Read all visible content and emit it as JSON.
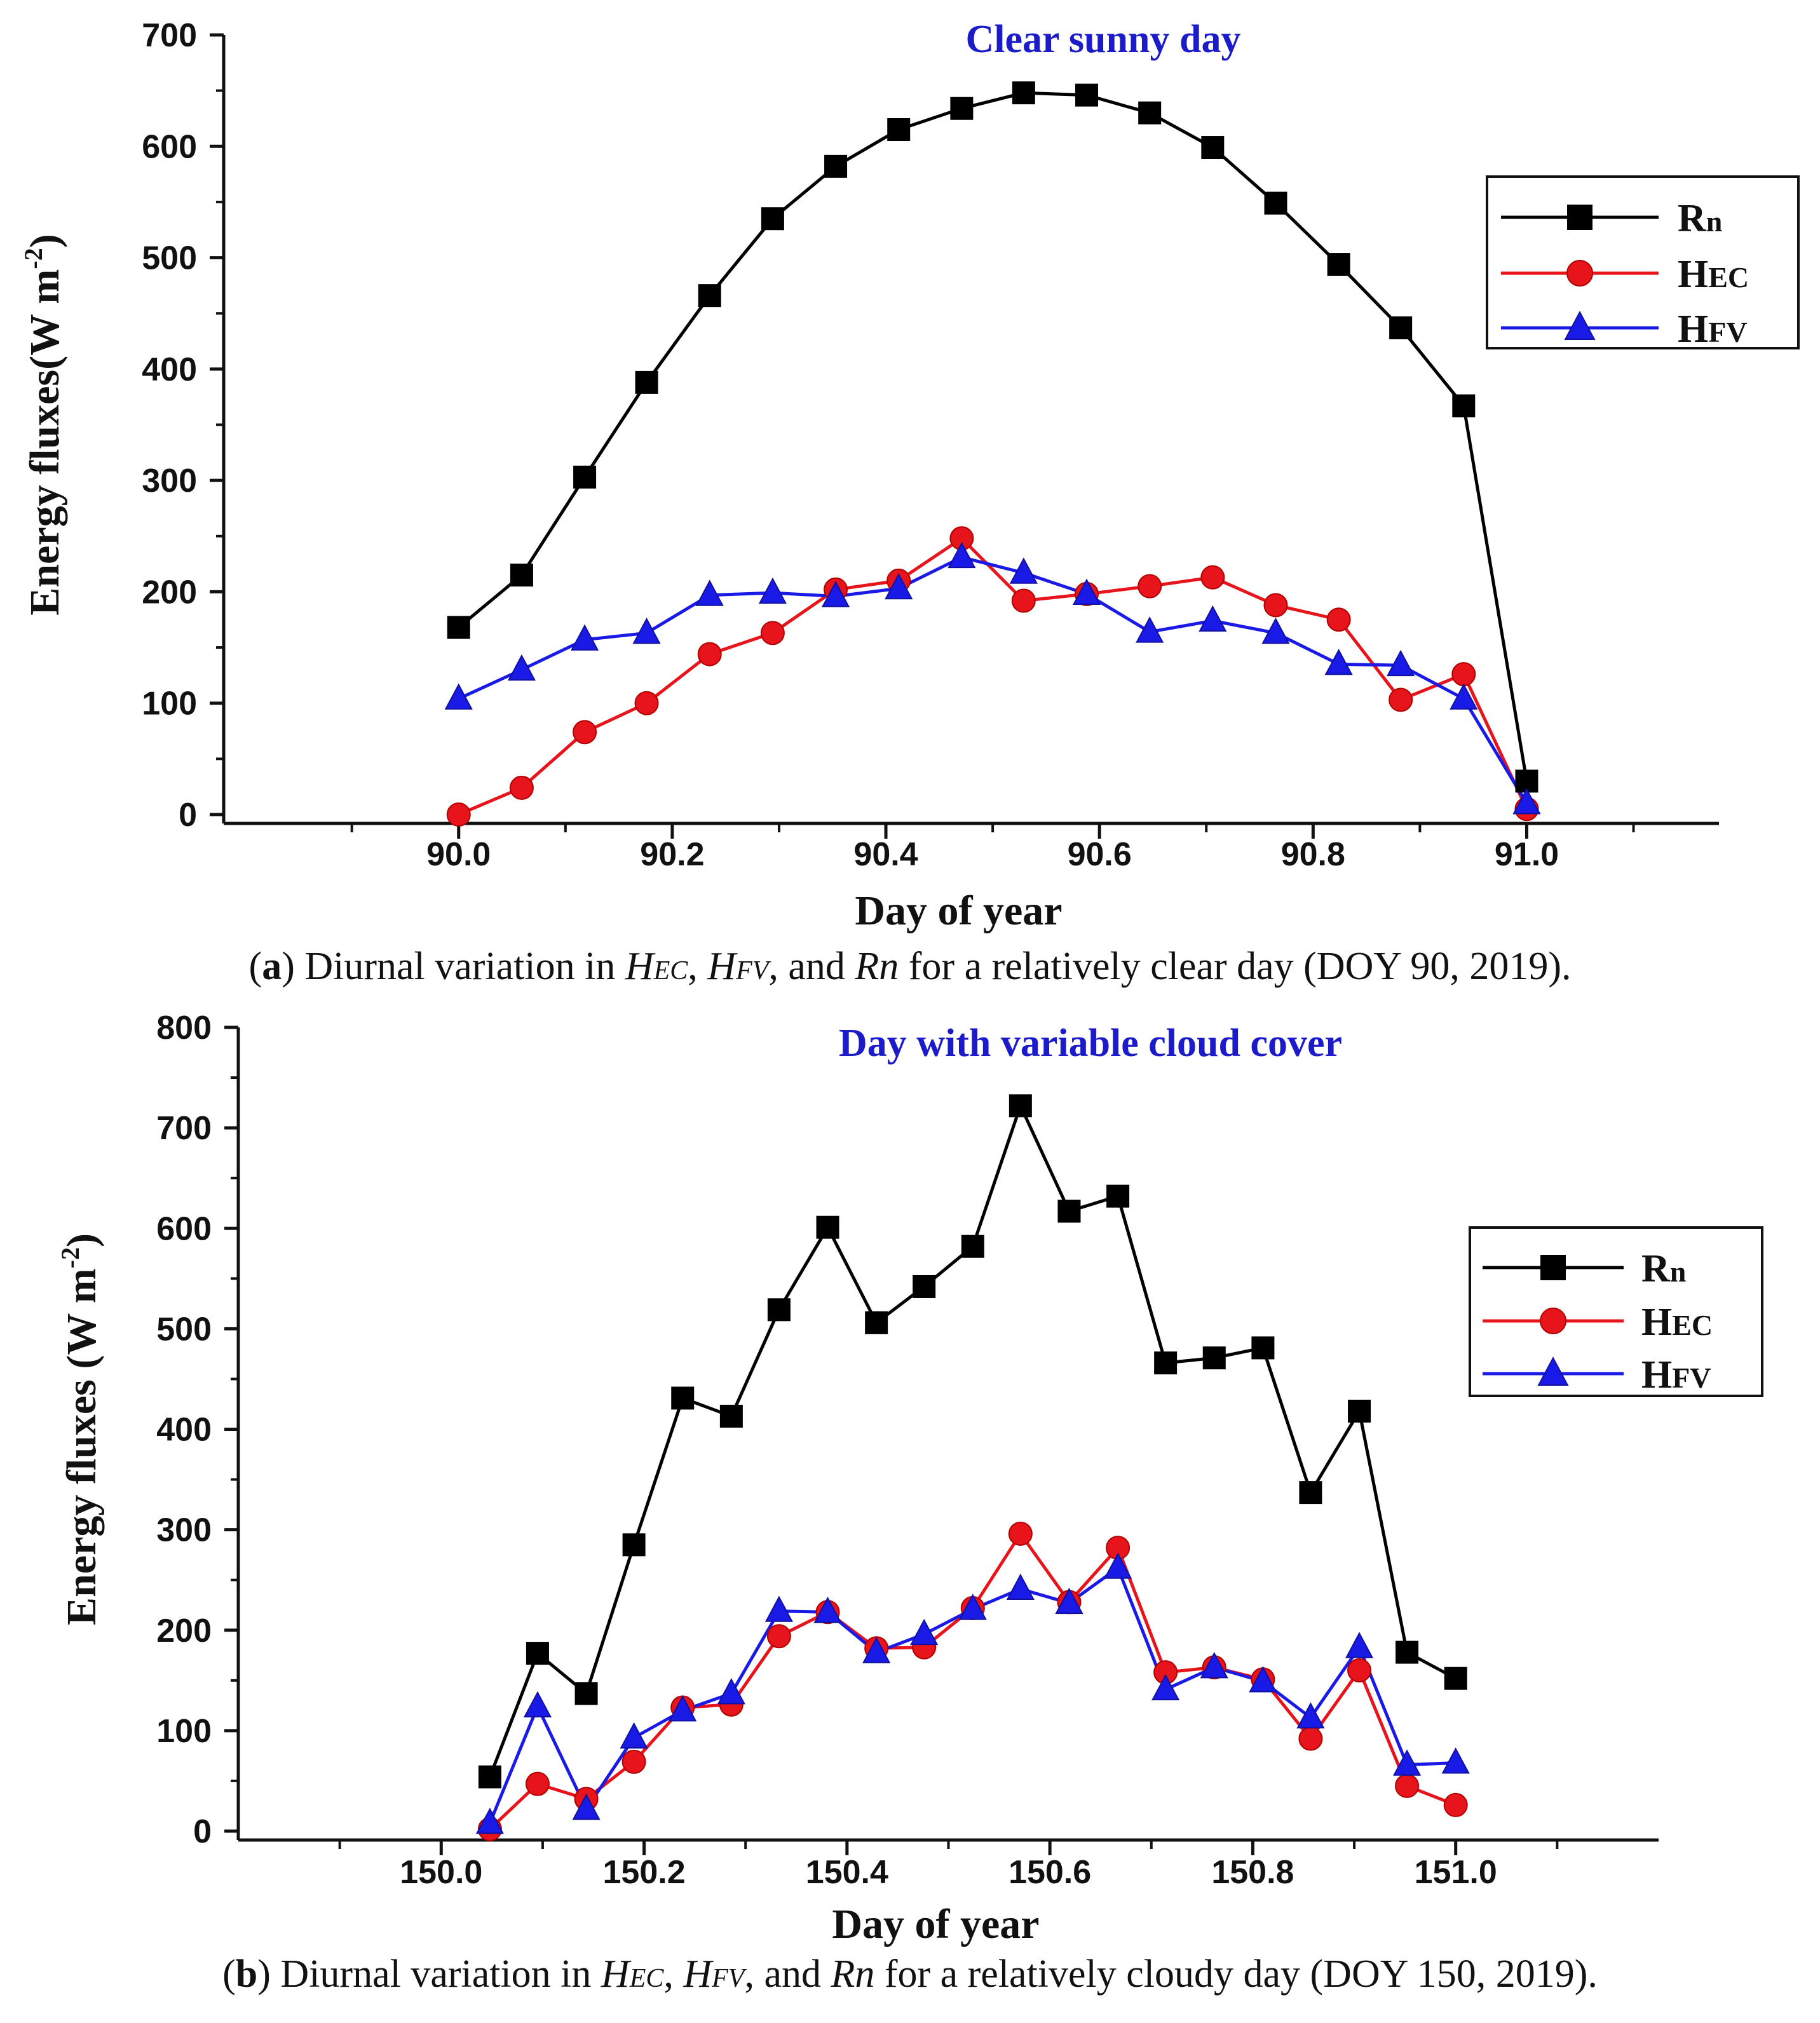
{
  "colors": {
    "rn": "#000000",
    "hec": "#e8141b",
    "hfv": "#1a1ae6",
    "title": "#1b1bc9"
  },
  "chart_data": [
    {
      "type": "line",
      "title": "Clear sunny day",
      "xlabel": "Day of year",
      "ylabel": "Energy fluxes(W m",
      "ylabel_sup": "-2",
      "ylabel_close": ")",
      "xlim": [
        89.78,
        91.18
      ],
      "ylim": [
        0,
        700
      ],
      "xticks": [
        90.0,
        90.2,
        90.4,
        90.6,
        90.8,
        91.0
      ],
      "xtick_labels": [
        "90.0",
        "90.2",
        "90.4",
        "90.6",
        "90.8",
        "91.0"
      ],
      "yticks": [
        0,
        100,
        200,
        300,
        400,
        500,
        600,
        700
      ],
      "ytick_labels": [
        "0",
        "100",
        "200",
        "300",
        "400",
        "500",
        "600",
        "700"
      ],
      "x": [
        90.0,
        90.059,
        90.118,
        90.176,
        90.235,
        90.294,
        90.353,
        90.412,
        90.471,
        90.529,
        90.588,
        90.647,
        90.706,
        90.765,
        90.824,
        90.882,
        90.941,
        91.0
      ],
      "series": [
        {
          "name": "Rn",
          "key": "rn",
          "marker": "square",
          "values": [
            168,
            215,
            303,
            388,
            466,
            535,
            582,
            615,
            634,
            648,
            646,
            630,
            599,
            549,
            494,
            437,
            367,
            30
          ]
        },
        {
          "name": "HEC",
          "key": "hec",
          "marker": "circle",
          "values": [
            0,
            24,
            74,
            100,
            144,
            163,
            202,
            210,
            248,
            192,
            198,
            205,
            213,
            188,
            175,
            103,
            126,
            5
          ]
        },
        {
          "name": "HFV",
          "key": "hfv",
          "marker": "triangle",
          "values": [
            104,
            130,
            157,
            163,
            197,
            199,
            196,
            203,
            231,
            217,
            198,
            164,
            174,
            163,
            135,
            134,
            104,
            10
          ]
        }
      ],
      "legend": [
        {
          "main": "R",
          "sub": "n"
        },
        {
          "main": "H",
          "sub": "EC"
        },
        {
          "main": "H",
          "sub": "FV"
        }
      ],
      "legend_position": "top-right"
    },
    {
      "type": "line",
      "title": "Day with variable cloud cover",
      "xlabel": "Day of year",
      "ylabel": "Energy fluxes (W m",
      "ylabel_sup": "-2",
      "ylabel_close": ")",
      "xlim": [
        149.8,
        151.2
      ],
      "ylim": [
        0,
        800
      ],
      "xticks": [
        150.0,
        150.2,
        150.4,
        150.6,
        150.8,
        151.0
      ],
      "xtick_labels": [
        "150.0",
        "150.2",
        "150.4",
        "150.6",
        "150.8",
        "151.0"
      ],
      "yticks": [
        0,
        100,
        200,
        300,
        400,
        500,
        600,
        700,
        800
      ],
      "ytick_labels": [
        "0",
        "100",
        "200",
        "300",
        "400",
        "500",
        "600",
        "700",
        "800"
      ],
      "x": [
        150.048,
        150.095,
        150.143,
        150.19,
        150.238,
        150.286,
        150.333,
        150.381,
        150.429,
        150.476,
        150.524,
        150.571,
        150.619,
        150.667,
        150.714,
        150.762,
        150.81,
        150.857,
        150.905,
        150.952,
        151.0
      ],
      "series": [
        {
          "name": "Rn",
          "key": "rn",
          "marker": "square",
          "values": [
            54,
            177,
            137,
            285,
            431,
            413,
            519,
            601,
            506,
            542,
            582,
            722,
            617,
            632,
            466,
            471,
            481,
            337,
            418,
            178,
            152
          ]
        },
        {
          "name": "HEC",
          "key": "hec",
          "marker": "circle",
          "values": [
            2,
            47,
            32,
            69,
            123,
            126,
            194,
            218,
            182,
            183,
            222,
            296,
            228,
            282,
            158,
            163,
            151,
            92,
            160,
            45,
            26
          ]
        },
        {
          "name": "HFV",
          "key": "hfv",
          "marker": "triangle",
          "values": [
            8,
            124,
            22,
            93,
            120,
            137,
            219,
            218,
            178,
            196,
            221,
            241,
            227,
            262,
            141,
            163,
            149,
            113,
            183,
            66,
            68
          ]
        }
      ],
      "legend": [
        {
          "main": "R",
          "sub": "n"
        },
        {
          "main": "H",
          "sub": "EC"
        },
        {
          "main": "H",
          "sub": "FV"
        }
      ],
      "legend_position": "top-right"
    }
  ],
  "captions": [
    {
      "label": "a",
      "pre": "Diurnal variation in",
      "vars": [
        {
          "main": "H",
          "sub": "EC"
        },
        {
          "main": "H",
          "sub": "FV"
        },
        {
          "main": "Rn",
          "sub": ""
        }
      ],
      "sep1": ",",
      "sep2": ", and",
      "post": "for a relatively clear day (DOY 90, 2019)."
    },
    {
      "label": "b",
      "pre": "Diurnal variation in",
      "vars": [
        {
          "main": "H",
          "sub": "EC"
        },
        {
          "main": "H",
          "sub": "FV"
        },
        {
          "main": "Rn",
          "sub": ""
        }
      ],
      "sep1": ",",
      "sep2": ", and",
      "post": "for a relatively cloudy day (DOY 150, 2019)."
    }
  ]
}
